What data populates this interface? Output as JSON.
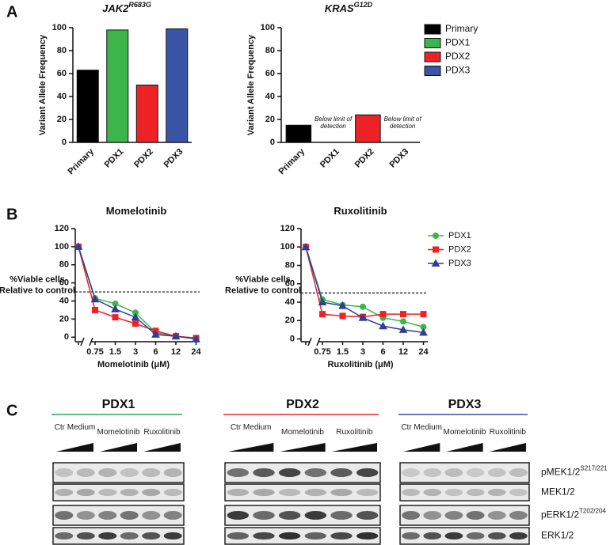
{
  "panel_labels": [
    "A",
    "B",
    "C"
  ],
  "chart_data": [
    {
      "type": "bar",
      "title": "JAK2",
      "title_superscript": "R683G",
      "ylabel": "Variant Allele Frequency",
      "categories": [
        "Primary",
        "PDX1",
        "PDX2",
        "PDX3"
      ],
      "values": [
        63,
        98,
        50,
        99
      ],
      "colors": [
        "#000000",
        "#3cb54a",
        "#ec2227",
        "#3a55a5"
      ],
      "ylim": [
        0,
        100
      ],
      "yticks": [
        0,
        20,
        40,
        60,
        80,
        100
      ]
    },
    {
      "type": "bar",
      "title": "KRAS",
      "title_superscript": "G12D",
      "ylabel": "Variant Allele Frequency",
      "categories": [
        "Primary",
        "PDX1",
        "PDX2",
        "PDX3"
      ],
      "values": [
        15,
        null,
        24,
        null
      ],
      "notes": [
        null,
        "Below limit of detection",
        null,
        "Below limit of detection"
      ],
      "colors": [
        "#000000",
        "#3cb54a",
        "#ec2227",
        "#3a55a5"
      ],
      "ylim": [
        0,
        100
      ],
      "yticks": [
        0,
        20,
        40,
        60,
        80,
        100
      ],
      "legend": "right"
    },
    {
      "type": "line",
      "title": "Momelotinib",
      "ylabel": [
        "%Viable cells",
        "Relative to control"
      ],
      "xlabel": "Momelotinib (μM)",
      "categories": [
        null,
        "0.75",
        "1.5",
        "3",
        "6",
        "12",
        "24"
      ],
      "series": [
        {
          "color": "#3cb54a",
          "marker": "circle",
          "values": [
            100,
            43,
            37,
            27,
            5,
            1,
            -1
          ]
        },
        {
          "color": "#ec2227",
          "marker": "square",
          "values": [
            100,
            30,
            22,
            15,
            7,
            1,
            -1
          ]
        },
        {
          "color": "#2e3f96",
          "marker": "triangle",
          "values": [
            100,
            42,
            31,
            22,
            3,
            1,
            -2
          ]
        }
      ],
      "ylim": [
        -5,
        120
      ],
      "yticks": [
        0,
        20,
        40,
        60,
        80,
        100,
        120
      ],
      "reference_line": 50
    },
    {
      "type": "line",
      "title": "Ruxolitinib",
      "ylabel": [
        "%Viable cells",
        "Relative to control"
      ],
      "xlabel": "Ruxolitinib (μM)",
      "categories": [
        null,
        "0.75",
        "1.5",
        "3",
        "6",
        "12",
        "24"
      ],
      "series": [
        {
          "name": "PDX1",
          "color": "#3cb54a",
          "marker": "circle",
          "values": [
            100,
            43,
            37,
            35,
            23,
            19,
            13
          ]
        },
        {
          "name": "PDX2",
          "color": "#ec2227",
          "marker": "square",
          "values": [
            100,
            27,
            25,
            24,
            27,
            27,
            27
          ]
        },
        {
          "name": "PDX3",
          "color": "#2e3f96",
          "marker": "triangle",
          "values": [
            100,
            40,
            36,
            23,
            14,
            10,
            7
          ]
        }
      ],
      "ylim": [
        -3,
        120
      ],
      "yticks": [
        0,
        20,
        40,
        60,
        80,
        100,
        120
      ],
      "reference_line": 50,
      "legend": "right"
    }
  ],
  "blot": {
    "groups": [
      {
        "title": "PDX1",
        "color": "#2aa84a"
      },
      {
        "title": "PDX2",
        "color": "#e2262a"
      },
      {
        "title": "PDX3",
        "color": "#3b4fa0"
      }
    ],
    "conditions": [
      "Ctr Medium",
      "Momelotinib",
      "Ruxolitinib"
    ],
    "rows": [
      {
        "name": "pMEK1/2",
        "superscript": "S217/221"
      },
      {
        "name": "MEK1/2"
      },
      {
        "name": "pERK1/2",
        "superscript": "T202/204"
      },
      {
        "name": "ERK1/2"
      }
    ]
  }
}
